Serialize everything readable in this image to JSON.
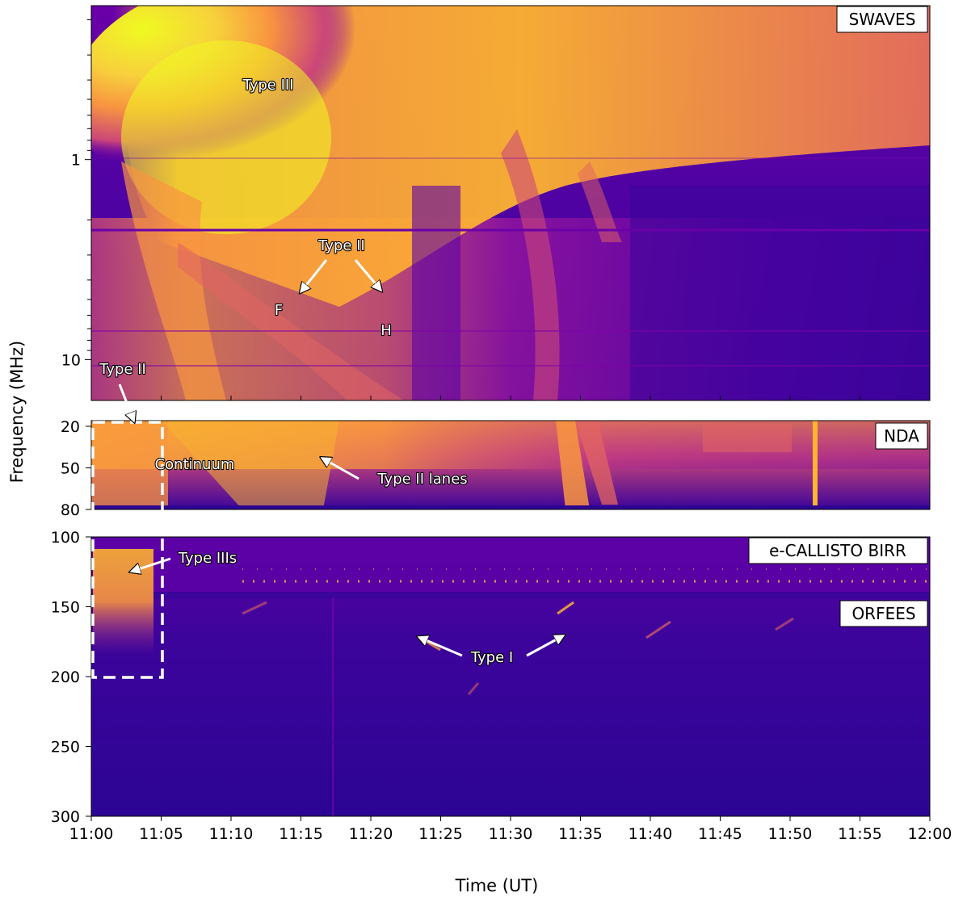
{
  "chart_data": {
    "type": "heatmap",
    "xlabel": "Time (UT)",
    "ylabel": "Frequency (MHz)",
    "x_ticks": [
      "11:00",
      "11:05",
      "11:10",
      "11:15",
      "11:20",
      "11:25",
      "11:30",
      "11:35",
      "11:40",
      "11:45",
      "11:50",
      "11:55",
      "12:00"
    ],
    "x_range": [
      "11:00",
      "12:00"
    ],
    "colormap": "plasma",
    "colors": {
      "low": "#1f0c8a",
      "mid": "#b42e8f",
      "high": "#f0f921",
      "warm": "#f89540"
    },
    "panels": [
      {
        "instrument": "SWAVES",
        "y_scale": "log",
        "y_range_mhz": [
          0.17,
          16
        ],
        "y_ticks": [
          "1",
          "10"
        ]
      },
      {
        "instrument": "NDA",
        "y_scale": "linear",
        "y_range_mhz": [
          20,
          80
        ],
        "y_ticks": [
          "20",
          "50",
          "80"
        ]
      },
      {
        "instrument": "e-CALLISTO BIRR",
        "y_scale": "linear",
        "y_range_mhz": [
          100,
          145
        ],
        "y_ticks": [
          "100"
        ]
      },
      {
        "instrument": "ORFEES",
        "y_scale": "linear",
        "y_range_mhz": [
          145,
          300
        ],
        "y_ticks": [
          "150",
          "200",
          "250",
          "300"
        ]
      }
    ],
    "annotations": [
      {
        "text": "Type III",
        "time": "11:12",
        "freq_mhz": 0.4
      },
      {
        "text": "Type II",
        "time": "11:18",
        "freq_mhz": 2.4
      },
      {
        "text": "F",
        "time": "11:13",
        "freq_mhz": 5.5
      },
      {
        "text": "H",
        "time": "11:21",
        "freq_mhz": 7.5
      },
      {
        "text": "Type II",
        "time": "11:02",
        "freq_mhz": 12
      },
      {
        "text": "Continuum",
        "time": "11:08",
        "freq_mhz": 42
      },
      {
        "text": "Type II lanes",
        "time": "11:24",
        "freq_mhz": 62
      },
      {
        "text": "Type IIIs",
        "time": "11:08",
        "freq_mhz": 115
      },
      {
        "text": "Type I",
        "time": "11:29",
        "freq_mhz": 180
      }
    ],
    "highlight_box": {
      "time_range": [
        "11:00",
        "11:05"
      ],
      "freq_range_mhz": [
        20,
        200
      ],
      "style": "white-dashed"
    }
  }
}
